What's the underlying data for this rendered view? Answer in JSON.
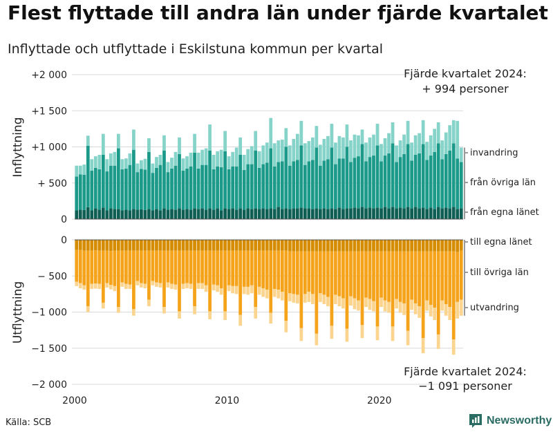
{
  "header": {
    "title": "Flest flyttade till andra län under fjärde kvartalet",
    "subtitle": "Inflyttade och utflyttade i Eskilstuna kommun per kvartal"
  },
  "footer": {
    "source": "Källa: SCB",
    "brand": "Newsworthy"
  },
  "colors": {
    "in_egna": "#0e5e54",
    "in_ovriga": "#1b9a8a",
    "in_invandring": "#86d3c9",
    "ut_egna": "#d58c00",
    "ut_ovriga": "#f5a31a",
    "ut_utvandring": "#fbd58f",
    "grid": "#d9d9d9",
    "brand": "#2a6b63"
  },
  "chart_data": {
    "type": "bar",
    "stacked": true,
    "x_ticks": [
      2000,
      2010,
      2020
    ],
    "panels": [
      {
        "ylabel": "Inflyttning",
        "ylim": [
          0,
          2000
        ],
        "yticks": [
          0,
          500,
          1000,
          1500,
          2000
        ],
        "ytick_labels": [
          "0",
          "+  500",
          "+1 000",
          "+1 500",
          "+2 000"
        ],
        "series": [
          {
            "name": "från egna länet",
            "values": [
              120,
              130,
              125,
              165,
              120,
              150,
              130,
              160,
              120,
              150,
              140,
              140,
              120,
              130,
              120,
              140,
              130,
              135,
              125,
              140,
              120,
              140,
              120,
              150,
              130,
              140,
              130,
              150,
              130,
              140,
              130,
              150,
              140,
              150,
              130,
              150,
              130,
              150,
              120,
              150,
              140,
              150,
              130,
              150,
              130,
              150,
              140,
              150,
              140,
              150,
              140,
              150,
              140,
              170,
              140,
              150,
              140,
              150,
              150,
              160,
              150,
              150,
              140,
              150,
              140,
              150,
              140,
              150,
              140,
              160,
              140,
              150,
              150,
              160,
              150,
              170,
              150,
              160,
              150,
              160,
              150,
              170,
              150,
              170,
              150,
              160,
              150,
              170,
              150,
              170,
              150,
              160,
              140,
              160,
              140,
              170,
              150,
              160,
              150,
              170,
              140,
              150
            ]
          },
          {
            "name": "från övriga län",
            "values": [
              470,
              490,
              490,
              850,
              550,
              560,
              560,
              730,
              540,
              590,
              600,
              840,
              570,
              570,
              630,
              820,
              520,
              560,
              560,
              790,
              520,
              570,
              630,
              800,
              520,
              560,
              610,
              750,
              540,
              560,
              600,
              770,
              560,
              600,
              620,
              800,
              560,
              580,
              600,
              790,
              550,
              580,
              600,
              740,
              550,
              610,
              620,
              800,
              570,
              610,
              640,
              830,
              590,
              620,
              660,
              850,
              600,
              650,
              670,
              860,
              600,
              650,
              680,
              840,
              600,
              660,
              690,
              840,
              620,
              680,
              700,
              850,
              640,
              690,
              720,
              870,
              650,
              700,
              730,
              860,
              650,
              710,
              760,
              880,
              640,
              700,
              750,
              870,
              660,
              720,
              760,
              880,
              680,
              720,
              790,
              880,
              680,
              740,
              800,
              880,
              700,
              640
            ]
          },
          {
            "name": "invandring",
            "values": [
              150,
              120,
              140,
              140,
              160,
              160,
              200,
              290,
              170,
              170,
              190,
              200,
              140,
              140,
              160,
              280,
              120,
              120,
              150,
              190,
              130,
              150,
              140,
              210,
              140,
              150,
              190,
              230,
              170,
              170,
              190,
              260,
              220,
              210,
              230,
              360,
              200,
              210,
              240,
              280,
              180,
              200,
              260,
              240,
              210,
              210,
              250,
              270,
              230,
              260,
              280,
              420,
              320,
              300,
              300,
              260,
              280,
              310,
              360,
              340,
              300,
              280,
              310,
              300,
              290,
              300,
              320,
              330,
              300,
              310,
              290,
              310,
              300,
              320,
              290,
              200,
              260,
              270,
              290,
              300,
              240,
              240,
              280,
              290,
              230,
              230,
              270,
              320,
              250,
              270,
              280,
              330,
              250,
              280,
              320,
              290,
              260,
              300,
              350,
              320,
              520,
              200
            ]
          }
        ],
        "right_labels": [
          "invandring",
          "från övriga län",
          "från egna länet"
        ],
        "annotation": [
          "Fjärde kvartalet 2024:",
          "+  994 personer"
        ]
      },
      {
        "ylabel": "Utflyttning",
        "ylim": [
          -2000,
          0
        ],
        "yticks": [
          0,
          -500,
          -1000,
          -1500,
          -2000
        ],
        "ytick_labels": [
          "0",
          "−  500",
          "−1 000",
          "−1 500",
          "−2 000"
        ],
        "series": [
          {
            "name": "till egna länet",
            "values": [
              -140,
              -140,
              -150,
              -150,
              -150,
              -145,
              -150,
              -150,
              -150,
              -155,
              -150,
              -150,
              -150,
              -150,
              -150,
              -150,
              -150,
              -150,
              -150,
              -150,
              -150,
              -150,
              -150,
              -150,
              -150,
              -150,
              -150,
              -150,
              -150,
              -150,
              -150,
              -150,
              -150,
              -150,
              -150,
              -150,
              -150,
              -150,
              -150,
              -150,
              -150,
              -150,
              -150,
              -150,
              -150,
              -150,
              -150,
              -150,
              -150,
              -150,
              -150,
              -150,
              -150,
              -150,
              -150,
              -150,
              -160,
              -160,
              -160,
              -160,
              -160,
              -160,
              -160,
              -160,
              -160,
              -160,
              -160,
              -160,
              -160,
              -160,
              -160,
              -160,
              -160,
              -160,
              -160,
              -160,
              -160,
              -160,
              -160,
              -160,
              -160,
              -160,
              -160,
              -160,
              -160,
              -160,
              -160,
              -160,
              -160,
              -160,
              -160,
              -160,
              -160,
              -160,
              -160,
              -160,
              -160,
              -160,
              -160,
              -160,
              -170,
              -150
            ]
          },
          {
            "name": "till övriga län",
            "values": [
              -440,
              -460,
              -480,
              -770,
              -460,
              -460,
              -460,
              -720,
              -450,
              -470,
              -490,
              -780,
              -440,
              -460,
              -470,
              -810,
              -420,
              -450,
              -460,
              -680,
              -420,
              -440,
              -450,
              -780,
              -440,
              -460,
              -470,
              -840,
              -460,
              -450,
              -460,
              -770,
              -450,
              -450,
              -480,
              -840,
              -470,
              -480,
              -520,
              -840,
              -480,
              -490,
              -490,
              -890,
              -500,
              -500,
              -480,
              -780,
              -500,
              -520,
              -540,
              -860,
              -530,
              -540,
              -570,
              -970,
              -580,
              -590,
              -600,
              -1060,
              -590,
              -560,
              -590,
              -1140,
              -580,
              -600,
              -630,
              -1030,
              -600,
              -620,
              -650,
              -1070,
              -620,
              -650,
              -680,
              -1020,
              -640,
              -660,
              -690,
              -1040,
              -640,
              -680,
              -700,
              -1040,
              -660,
              -700,
              -720,
              -1100,
              -670,
              -720,
              -760,
              -1200,
              -680,
              -740,
              -780,
              -1150,
              -680,
              -730,
              -770,
              -1220,
              -690,
              -680
            ]
          },
          {
            "name": "utvandring",
            "values": [
              -60,
              -70,
              -60,
              -80,
              -70,
              -70,
              -70,
              -80,
              -60,
              -60,
              -70,
              -80,
              -60,
              -70,
              -60,
              -90,
              -60,
              -60,
              -60,
              -90,
              -60,
              -60,
              -60,
              -90,
              -70,
              -70,
              -70,
              -100,
              -70,
              -70,
              -70,
              -110,
              -80,
              -80,
              -90,
              -110,
              -80,
              -90,
              -90,
              -120,
              -80,
              -100,
              -110,
              -150,
              -100,
              -110,
              -110,
              -160,
              -110,
              -120,
              -120,
              -150,
              -110,
              -120,
              -120,
              -160,
              -110,
              -120,
              -120,
              -180,
              -120,
              -140,
              -140,
              -160,
              -120,
              -130,
              -130,
              -180,
              -130,
              -140,
              -140,
              -180,
              -130,
              -150,
              -140,
              -180,
              -130,
              -150,
              -140,
              -190,
              -130,
              -150,
              -150,
              -200,
              -130,
              -150,
              -160,
              -200,
              -140,
              -150,
              -160,
              -210,
              -140,
              -160,
              -170,
              -200,
              -140,
              -160,
              -180,
              -210,
              -230,
              -220
            ]
          }
        ],
        "right_labels": [
          "till egna länet",
          "till övriga län",
          "utvandring"
        ],
        "annotation": [
          "Fjärde kvartalet 2024:",
          "−1 091 personer"
        ]
      }
    ]
  }
}
